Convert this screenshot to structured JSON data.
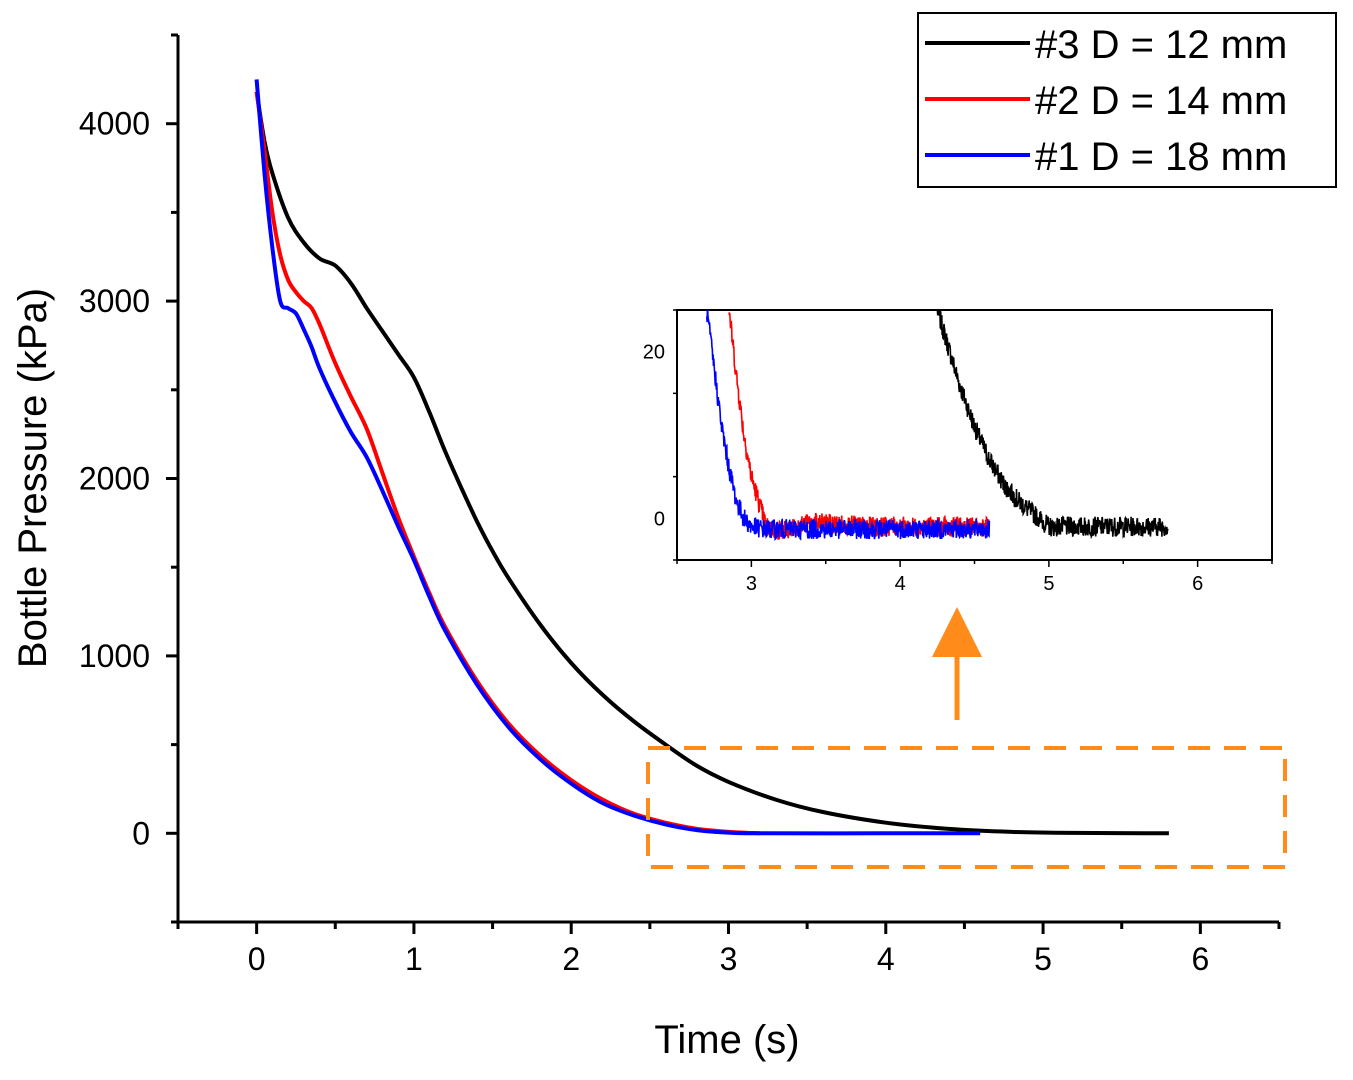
{
  "colors": {
    "series_3": "#000000",
    "series_2": "#ff0000",
    "series_1": "#0000ff",
    "highlight": "#ff8c1a"
  },
  "chart_data": [
    {
      "type": "line",
      "title": "",
      "xlabel": "Time (s)",
      "ylabel": "Bottle Pressure (kPa)",
      "xlim": [
        -0.5,
        6.5
      ],
      "ylim": [
        -500,
        4500
      ],
      "xticks": [
        0,
        1,
        2,
        3,
        4,
        5,
        6
      ],
      "yticks": [
        0,
        1000,
        2000,
        3000,
        4000
      ],
      "grid": false,
      "legend_position": "top-right",
      "series": [
        {
          "name": "#3 D = 12 mm",
          "color": "#000000",
          "x": [
            0,
            0.05,
            0.1,
            0.2,
            0.3,
            0.4,
            0.5,
            0.6,
            0.7,
            0.8,
            0.9,
            1.0,
            1.1,
            1.2,
            1.3,
            1.4,
            1.5,
            1.6,
            1.8,
            2.0,
            2.2,
            2.4,
            2.6,
            2.8,
            3.0,
            3.3,
            3.6,
            4.0,
            4.4,
            4.8,
            5.2,
            5.8
          ],
          "values": [
            4180,
            3900,
            3720,
            3470,
            3330,
            3240,
            3200,
            3100,
            2960,
            2830,
            2700,
            2570,
            2370,
            2150,
            1950,
            1760,
            1590,
            1440,
            1180,
            960,
            780,
            630,
            500,
            380,
            290,
            190,
            120,
            60,
            25,
            8,
            2,
            0
          ]
        },
        {
          "name": "#2 D = 14 mm",
          "color": "#ff0000",
          "x": [
            0,
            0.05,
            0.1,
            0.15,
            0.2,
            0.25,
            0.3,
            0.35,
            0.4,
            0.5,
            0.6,
            0.7,
            0.8,
            0.9,
            1.0,
            1.1,
            1.2,
            1.4,
            1.6,
            1.8,
            2.0,
            2.2,
            2.4,
            2.6,
            2.8,
            3.0,
            3.2
          ],
          "values": [
            4180,
            3850,
            3500,
            3260,
            3120,
            3050,
            3000,
            2960,
            2870,
            2650,
            2460,
            2280,
            2030,
            1780,
            1560,
            1350,
            1160,
            860,
            620,
            440,
            300,
            190,
            110,
            60,
            25,
            8,
            0
          ]
        },
        {
          "name": "#1 D = 18 mm",
          "color": "#0000ff",
          "x": [
            0,
            0.05,
            0.1,
            0.15,
            0.2,
            0.25,
            0.3,
            0.35,
            0.4,
            0.5,
            0.6,
            0.7,
            0.8,
            0.9,
            1.0,
            1.1,
            1.2,
            1.4,
            1.6,
            1.8,
            2.0,
            2.2,
            2.4,
            2.6,
            2.8,
            3.0,
            3.2,
            4.0,
            4.6
          ],
          "values": [
            4250,
            3720,
            3300,
            3000,
            2960,
            2930,
            2840,
            2740,
            2620,
            2430,
            2260,
            2120,
            1930,
            1730,
            1540,
            1330,
            1140,
            840,
            600,
            420,
            280,
            170,
            100,
            50,
            18,
            4,
            0,
            0,
            0
          ]
        }
      ]
    },
    {
      "type": "line",
      "title": "",
      "xlabel": "",
      "ylabel": "",
      "xlim": [
        2.5,
        6.5
      ],
      "ylim": [
        -5,
        25
      ],
      "xticks": [
        3,
        4,
        5,
        6
      ],
      "yticks": [
        0,
        20
      ],
      "grid": false,
      "legend_position": "none",
      "series": [
        {
          "name": "#3 D = 12 mm",
          "color": "#000000",
          "x": [
            4.25,
            4.3,
            4.4,
            4.5,
            4.6,
            4.7,
            4.8,
            4.9,
            5.0,
            5.2,
            5.4,
            5.6,
            5.8
          ],
          "values": [
            25,
            22,
            16,
            11,
            7,
            4,
            2,
            0.5,
            -1,
            -1,
            -1,
            -1,
            -1
          ]
        },
        {
          "name": "#2 D = 14 mm",
          "color": "#ff0000",
          "x": [
            2.85,
            2.9,
            2.95,
            3.0,
            3.05,
            3.1,
            3.2,
            3.4,
            3.8,
            4.2,
            4.6
          ],
          "values": [
            25,
            17,
            10,
            5,
            2,
            -1,
            -1.5,
            -0.5,
            -1,
            -1,
            -1
          ]
        },
        {
          "name": "#1 D = 18 mm",
          "color": "#0000ff",
          "x": [
            2.7,
            2.75,
            2.8,
            2.85,
            2.9,
            2.95,
            3.0,
            3.1,
            3.4,
            3.8,
            4.2,
            4.6
          ],
          "values": [
            25,
            18,
            11,
            6,
            2,
            0,
            -1,
            -1.3,
            -1.3,
            -1.3,
            -1.3,
            -1.3
          ]
        }
      ]
    }
  ]
}
